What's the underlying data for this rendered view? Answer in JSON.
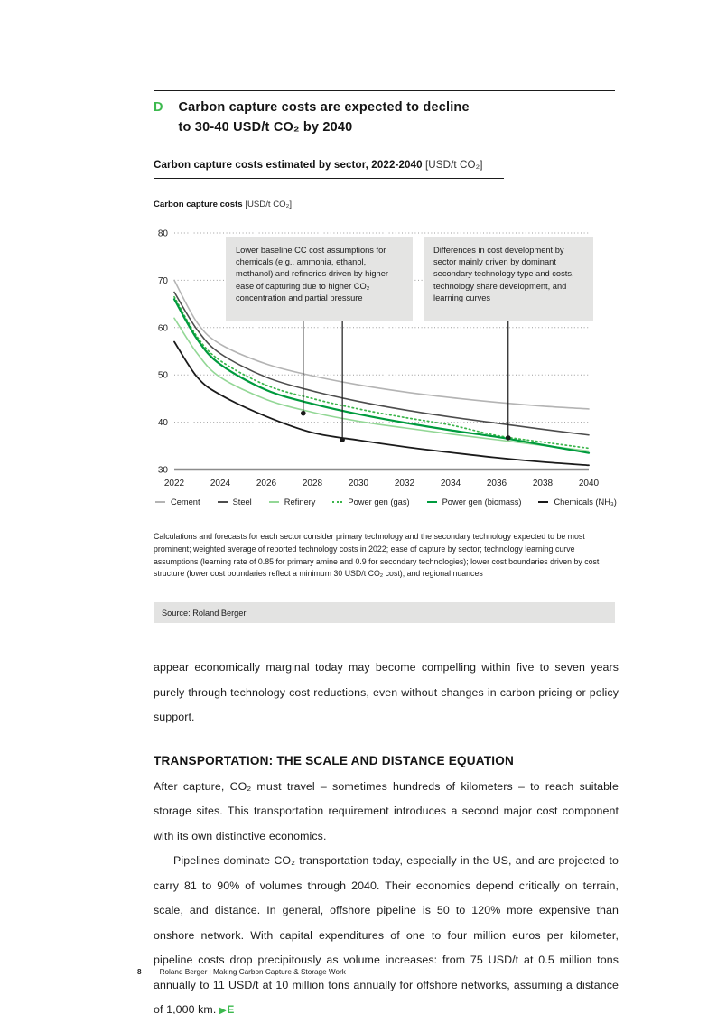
{
  "header": {
    "section_letter": "D",
    "title": "Carbon capture costs are expected to decline\nto 30-40 USD/t CO₂ by 2040",
    "exhibit_title": "Carbon capture costs estimated by sector, 2022-2040",
    "exhibit_unit": "[USD/t CO₂]"
  },
  "chart_data": {
    "type": "line",
    "title": "Carbon capture costs estimated by sector, 2022-2040 [USD/t CO₂]",
    "ylabel_bold": "Carbon capture costs",
    "ylabel_unit": "[USD/t CO₂]",
    "x": [
      2022,
      2023,
      2024,
      2026,
      2028,
      2030,
      2032,
      2034,
      2036,
      2038,
      2040
    ],
    "x_ticks": [
      2022,
      2024,
      2026,
      2028,
      2030,
      2032,
      2034,
      2036,
      2038,
      2040
    ],
    "y_ticks": [
      30,
      40,
      50,
      60,
      70,
      80
    ],
    "xlim": [
      2022,
      2040
    ],
    "ylim": [
      30,
      80
    ],
    "grid": "horizontal dotted",
    "legend_position": "bottom",
    "series": [
      {
        "name": "Cement",
        "color": "#b4b4b4",
        "style": "solid",
        "width": 1.6,
        "values": [
          70,
          61,
          56.5,
          52.3,
          49.8,
          47.9,
          46.4,
          45.2,
          44.2,
          43.4,
          42.8
        ]
      },
      {
        "name": "Steel",
        "color": "#4d4d4d",
        "style": "solid",
        "width": 1.6,
        "values": [
          67.5,
          59.5,
          54.5,
          49.5,
          46.6,
          44.4,
          42.6,
          41.1,
          39.8,
          38.5,
          37.3
        ]
      },
      {
        "name": "Refinery",
        "color": "#93d796",
        "style": "solid",
        "width": 1.6,
        "values": [
          62,
          54.5,
          49.5,
          44.8,
          42.1,
          40.2,
          38.8,
          37.5,
          36.3,
          35.1,
          33.9
        ]
      },
      {
        "name": "Power gen (gas)",
        "color": "#3bb54a",
        "style": "dotted",
        "width": 1.7,
        "values": [
          66.5,
          58,
          53,
          47.8,
          45,
          42.8,
          41,
          39.4,
          37.2,
          35.8,
          34.5
        ]
      },
      {
        "name": "Power gen (biomass)",
        "color": "#009b3e",
        "style": "solid",
        "width": 2.2,
        "values": [
          66,
          57.5,
          52.2,
          46.8,
          43.9,
          41.7,
          39.9,
          38.3,
          36.9,
          35.2,
          33.5
        ]
      },
      {
        "name": "Chemicals (NH₃)",
        "color": "#1a1a1a",
        "style": "solid",
        "width": 1.8,
        "values": [
          57,
          49.5,
          45.8,
          41.2,
          37.8,
          36.2,
          34.8,
          33.6,
          32.5,
          31.6,
          30.9
        ]
      }
    ],
    "annotations": [
      {
        "text": "Lower baseline CC cost assumptions for chemicals (e.g., ammonia, ethanol, methanol) and refineries driven by higher ease of capturing due to higher CO₂ concentration and partial pressure",
        "leaders": [
          {
            "year": 2027.6,
            "value": 41.9
          },
          {
            "year": 2029.3,
            "value": 36.3
          }
        ]
      },
      {
        "text": "Differences in cost development by sector mainly driven by dominant secondary technology type and costs, technology share development, and learning curves",
        "leaders": [
          {
            "year": 2036.5,
            "value": 36.7
          }
        ]
      }
    ]
  },
  "footnote": "Calculations and forecasts for each sector consider primary technology and the secondary technology expected to be most prominent; weighted average of reported technology costs in 2022; ease of capture by sector; technology learning curve assumptions (learning rate of 0.85 for primary amine and 0.9 for secondary technologies); lower cost boundaries driven by cost structure (lower cost boundaries reflect a minimum 30 USD/t CO₂ cost); and regional nuances",
  "source": "Source: Roland Berger",
  "body": {
    "para1": "appear economically marginal today may become compelling within five to seven years purely through technology cost reductions, even without changes in carbon pricing or policy support.",
    "section_heading": "TRANSPORTATION: THE SCALE AND DISTANCE EQUATION",
    "para2": "After capture, CO₂ must travel – sometimes hundreds of kilometers – to reach suitable storage sites. This transportation requirement introduces a second major cost component with its own distinctive economics.",
    "para3": "Pipelines dominate CO₂ transportation today, especially in the US, and are projected to carry 81 to 90% of volumes through 2040. Their economics depend critically on terrain, scale, and distance. In general, offshore pipeline is 50 to 120% more expensive than onshore network. With capital expenditures of one to four million euros per kilometer, pipeline costs drop precipitously as volume increases: from 75 USD/t at 0.5 million tons annually to 11 USD/t at 10 million tons annually for offshore networks, assuming a distance of 1,000 km.",
    "para3_marker_icon": "▶",
    "para3_marker_label": "E"
  },
  "footer": {
    "page_number": "8",
    "text": "Roland Berger | Making Carbon Capture & Storage Work"
  },
  "colors": {
    "accent_green": "#3cb94e",
    "annotation_grey": "#e4e4e3",
    "source_bar_grey": "#e3e3e2"
  }
}
